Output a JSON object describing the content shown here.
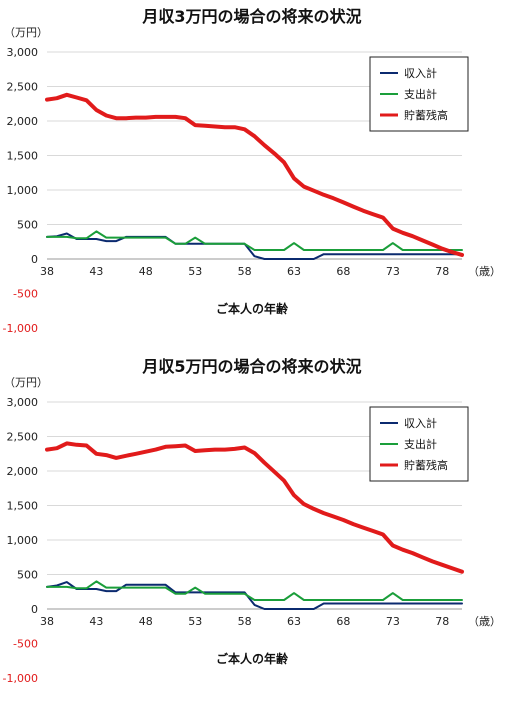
{
  "colors": {
    "income": "#0b2a6f",
    "expense": "#1a9e3a",
    "savings": "#e11b1b",
    "grid": "#d9d9d9",
    "negative_tick": "#e11b1b"
  },
  "chart_data": [
    {
      "type": "line",
      "title": "月収3万円の場合の将来の状況",
      "y_unit": "（万円）",
      "x_unit": "（歳）",
      "xlabel": "ご本人の年齢",
      "x_ticks": [
        38,
        43,
        48,
        53,
        58,
        63,
        68,
        73,
        78
      ],
      "x_tick_labels": [
        "38",
        "43",
        "48",
        "53",
        "58",
        "63",
        "68",
        "73",
        "78"
      ],
      "y_ticks": [
        3000,
        2500,
        2000,
        1500,
        1000,
        500,
        0
      ],
      "y_tick_labels": [
        "3,000",
        "2,500",
        "2,000",
        "1,500",
        "1,000",
        "500",
        "0"
      ],
      "y_neg_tick_values": [
        -500,
        -1000
      ],
      "y_neg_tick_labels": [
        "-500",
        "-1,000"
      ],
      "xlim": [
        38,
        80
      ],
      "ylim": [
        0,
        3000
      ],
      "grid": true,
      "legend_position": "top-right",
      "x": [
        38,
        39,
        40,
        41,
        42,
        43,
        44,
        45,
        46,
        47,
        48,
        49,
        50,
        51,
        52,
        53,
        54,
        55,
        56,
        57,
        58,
        59,
        60,
        61,
        62,
        63,
        64,
        65,
        66,
        67,
        68,
        69,
        70,
        71,
        72,
        73,
        74,
        75,
        76,
        77,
        78,
        79,
        80
      ],
      "series": [
        {
          "name": "収入計",
          "color_key": "income",
          "stroke": 2,
          "values": [
            320,
            330,
            370,
            290,
            290,
            290,
            260,
            260,
            320,
            320,
            320,
            320,
            320,
            220,
            220,
            220,
            220,
            220,
            220,
            220,
            220,
            40,
            0,
            0,
            0,
            0,
            0,
            0,
            70,
            70,
            70,
            70,
            70,
            70,
            70,
            70,
            70,
            70,
            70,
            70,
            70,
            70,
            70
          ]
        },
        {
          "name": "支出計",
          "color_key": "expense",
          "stroke": 2,
          "values": [
            320,
            320,
            320,
            300,
            300,
            400,
            310,
            310,
            310,
            310,
            310,
            310,
            310,
            220,
            220,
            310,
            220,
            220,
            220,
            220,
            220,
            130,
            130,
            130,
            130,
            230,
            130,
            130,
            130,
            130,
            130,
            130,
            130,
            130,
            130,
            230,
            130,
            130,
            130,
            130,
            130,
            130,
            130
          ]
        },
        {
          "name": "貯蓄残高",
          "color_key": "savings",
          "stroke": 4,
          "values": [
            2310,
            2330,
            2380,
            2340,
            2300,
            2160,
            2080,
            2040,
            2040,
            2050,
            2050,
            2060,
            2060,
            2060,
            2040,
            1940,
            1930,
            1920,
            1910,
            1910,
            1880,
            1780,
            1650,
            1530,
            1400,
            1170,
            1050,
            990,
            930,
            880,
            820,
            760,
            700,
            650,
            600,
            440,
            380,
            330,
            270,
            210,
            150,
            100,
            60
          ]
        }
      ]
    },
    {
      "type": "line",
      "title": "月収5万円の場合の将来の状況",
      "y_unit": "（万円）",
      "x_unit": "（歳）",
      "xlabel": "ご本人の年齢",
      "x_ticks": [
        38,
        43,
        48,
        53,
        58,
        63,
        68,
        73,
        78
      ],
      "x_tick_labels": [
        "38",
        "43",
        "48",
        "53",
        "58",
        "63",
        "68",
        "73",
        "78"
      ],
      "y_ticks": [
        3000,
        2500,
        2000,
        1500,
        1000,
        500,
        0
      ],
      "y_tick_labels": [
        "3,000",
        "2,500",
        "2,000",
        "1,500",
        "1,000",
        "500",
        "0"
      ],
      "y_neg_tick_values": [
        -500,
        -1000
      ],
      "y_neg_tick_labels": [
        "-500",
        "-1,000"
      ],
      "xlim": [
        38,
        80
      ],
      "ylim": [
        0,
        3000
      ],
      "grid": true,
      "legend_position": "top-right",
      "x": [
        38,
        39,
        40,
        41,
        42,
        43,
        44,
        45,
        46,
        47,
        48,
        49,
        50,
        51,
        52,
        53,
        54,
        55,
        56,
        57,
        58,
        59,
        60,
        61,
        62,
        63,
        64,
        65,
        66,
        67,
        68,
        69,
        70,
        71,
        72,
        73,
        74,
        75,
        76,
        77,
        78,
        79,
        80
      ],
      "series": [
        {
          "name": "収入計",
          "color_key": "income",
          "stroke": 2,
          "values": [
            320,
            340,
            390,
            290,
            290,
            290,
            260,
            260,
            350,
            350,
            350,
            350,
            350,
            240,
            240,
            240,
            240,
            240,
            240,
            240,
            240,
            60,
            0,
            0,
            0,
            0,
            0,
            0,
            80,
            80,
            80,
            80,
            80,
            80,
            80,
            80,
            80,
            80,
            80,
            80,
            80,
            80,
            80
          ]
        },
        {
          "name": "支出計",
          "color_key": "expense",
          "stroke": 2,
          "values": [
            320,
            320,
            320,
            300,
            300,
            400,
            310,
            310,
            310,
            310,
            310,
            310,
            310,
            220,
            220,
            310,
            220,
            220,
            220,
            220,
            220,
            130,
            130,
            130,
            130,
            230,
            130,
            130,
            130,
            130,
            130,
            130,
            130,
            130,
            130,
            230,
            130,
            130,
            130,
            130,
            130,
            130,
            130
          ]
        },
        {
          "name": "貯蓄残高",
          "color_key": "savings",
          "stroke": 4,
          "values": [
            2310,
            2330,
            2400,
            2380,
            2370,
            2250,
            2230,
            2190,
            2220,
            2250,
            2280,
            2310,
            2350,
            2360,
            2370,
            2290,
            2300,
            2310,
            2310,
            2320,
            2340,
            2260,
            2120,
            1990,
            1860,
            1650,
            1520,
            1450,
            1390,
            1340,
            1290,
            1230,
            1180,
            1130,
            1080,
            920,
            860,
            810,
            750,
            690,
            640,
            590,
            540
          ]
        }
      ]
    }
  ]
}
